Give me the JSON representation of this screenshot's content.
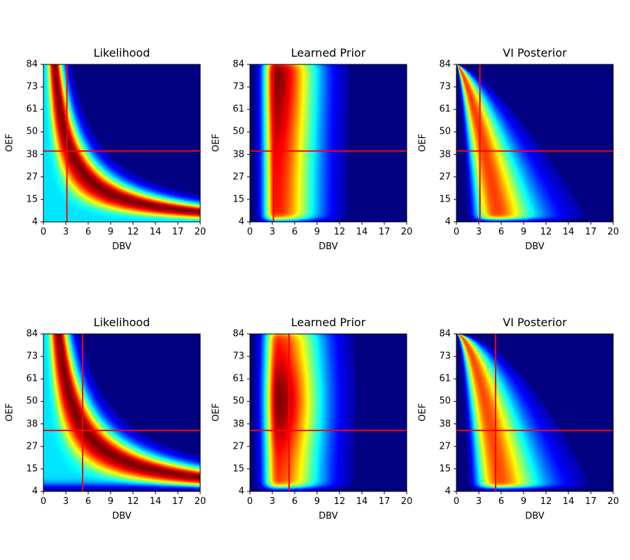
{
  "chart_data": [
    {
      "type": "heatmap",
      "title": "Likelihood",
      "xlabel": "DBV",
      "ylabel": "OEF",
      "xlim": [
        0,
        20
      ],
      "ylim": [
        4,
        84
      ],
      "colormap": "jet",
      "marker": {
        "DBV": 3,
        "OEF": 40,
        "color": "#ff0000"
      },
      "xticks": [
        "0",
        "3",
        "6",
        "9",
        "12",
        "14",
        "17",
        "20"
      ],
      "yticks": [
        "4",
        "15",
        "27",
        "38",
        "50",
        "61",
        "73",
        "84"
      ]
    },
    {
      "type": "heatmap",
      "title": "Learned Prior",
      "xlabel": "DBV",
      "ylabel": "OEF",
      "xlim": [
        0,
        20
      ],
      "ylim": [
        4,
        84
      ],
      "colormap": "jet",
      "marker": {
        "DBV": 3,
        "OEF": 40,
        "color": "#ff0000"
      },
      "xticks": [
        "0",
        "3",
        "6",
        "9",
        "12",
        "14",
        "17",
        "20"
      ],
      "yticks": [
        "4",
        "15",
        "27",
        "38",
        "50",
        "61",
        "73",
        "84"
      ]
    },
    {
      "type": "heatmap",
      "title": "VI Posterior",
      "xlabel": "DBV",
      "ylabel": "OEF",
      "xlim": [
        0,
        20
      ],
      "ylim": [
        4,
        84
      ],
      "colormap": "jet",
      "marker": {
        "DBV": 3,
        "OEF": 40,
        "color": "#ff0000"
      },
      "xticks": [
        "0",
        "3",
        "6",
        "9",
        "12",
        "14",
        "17",
        "20"
      ],
      "yticks": [
        "4",
        "15",
        "27",
        "38",
        "50",
        "61",
        "73",
        "84"
      ]
    },
    {
      "type": "heatmap",
      "title": "Likelihood",
      "xlabel": "DBV",
      "ylabel": "OEF",
      "xlim": [
        0,
        20
      ],
      "ylim": [
        4,
        84
      ],
      "colormap": "jet",
      "marker": {
        "DBV": 5,
        "OEF": 35,
        "color": "#ff0000"
      },
      "xticks": [
        "0",
        "3",
        "6",
        "9",
        "12",
        "14",
        "17",
        "20"
      ],
      "yticks": [
        "4",
        "15",
        "27",
        "38",
        "50",
        "61",
        "73",
        "84"
      ]
    },
    {
      "type": "heatmap",
      "title": "Learned Prior",
      "xlabel": "DBV",
      "ylabel": "OEF",
      "xlim": [
        0,
        20
      ],
      "ylim": [
        4,
        84
      ],
      "colormap": "jet",
      "marker": {
        "DBV": 5,
        "OEF": 35,
        "color": "#ff0000"
      },
      "xticks": [
        "0",
        "3",
        "6",
        "9",
        "12",
        "14",
        "17",
        "20"
      ],
      "yticks": [
        "4",
        "15",
        "27",
        "38",
        "50",
        "61",
        "73",
        "84"
      ]
    },
    {
      "type": "heatmap",
      "title": "VI Posterior",
      "xlabel": "DBV",
      "ylabel": "OEF",
      "xlim": [
        0,
        20
      ],
      "ylim": [
        4,
        84
      ],
      "colormap": "jet",
      "marker": {
        "DBV": 5,
        "OEF": 35,
        "color": "#ff0000"
      },
      "xticks": [
        "0",
        "3",
        "6",
        "9",
        "12",
        "14",
        "17",
        "20"
      ],
      "yticks": [
        "4",
        "15",
        "27",
        "38",
        "50",
        "61",
        "73",
        "84"
      ]
    }
  ]
}
